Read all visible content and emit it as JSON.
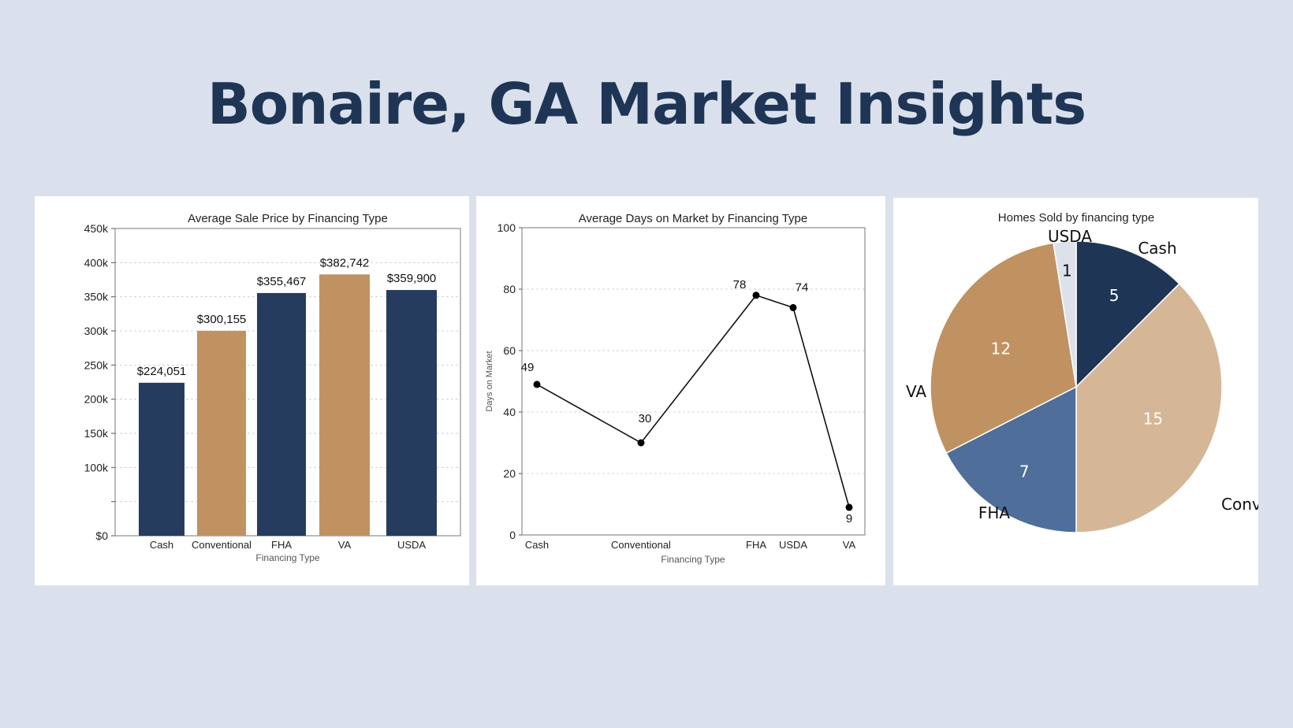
{
  "page": {
    "title": "Bonaire, GA Market Insights"
  },
  "colors": {
    "background": "#dae1ec",
    "navy": "#253c5e",
    "tan": "#c09262",
    "dark_navy": "#1f3556",
    "light_tan": "#d5b797",
    "slate_blue": "#4f6e99",
    "pale": "#dde1ea"
  },
  "chart_data": [
    {
      "type": "bar",
      "title": "Average Sale Price by Financing Type",
      "xlabel": "Financing Type",
      "ylabel": "",
      "categories": [
        "Cash",
        "Conventional",
        "FHA",
        "VA",
        "USDA"
      ],
      "values": [
        224051,
        300155,
        355467,
        382742,
        359900
      ],
      "data_labels": [
        "$224,051",
        "$300,155",
        "$355,467",
        "$382,742",
        "$359,900"
      ],
      "bar_colors": [
        "#253c5e",
        "#c09262",
        "#253c5e",
        "#c09262",
        "#253c5e"
      ],
      "ylim": [
        0,
        450000
      ],
      "yticks": [
        0,
        50000,
        100000,
        150000,
        200000,
        250000,
        300000,
        350000,
        400000,
        450000
      ],
      "ytick_labels": [
        "$0",
        "",
        "100k",
        "150k",
        "200k",
        "250k",
        "300k",
        "350k",
        "400k",
        "450k"
      ],
      "grid": true
    },
    {
      "type": "line",
      "title": "Average Days on Market by Financing Type",
      "xlabel": "Financing Type",
      "ylabel": "Days on Market",
      "categories": [
        "Cash",
        "Conventional",
        "FHA",
        "USDA",
        "VA"
      ],
      "values": [
        49,
        30,
        78,
        74,
        9
      ],
      "ylim": [
        0,
        100
      ],
      "yticks": [
        0,
        20,
        40,
        60,
        80,
        100
      ],
      "grid": true
    },
    {
      "type": "pie",
      "title": "Homes Sold by financing type",
      "categories": [
        "Cash",
        "Conventional",
        "FHA",
        "VA",
        "USDA"
      ],
      "values": [
        5,
        15,
        7,
        12,
        1
      ],
      "colors": [
        "#1f3556",
        "#d5b797",
        "#4f6e99",
        "#c09262",
        "#dde1ea"
      ],
      "value_label_colors": [
        "#ffffff",
        "#ffffff",
        "#ffffff",
        "#ffffff",
        "#111111"
      ]
    }
  ]
}
